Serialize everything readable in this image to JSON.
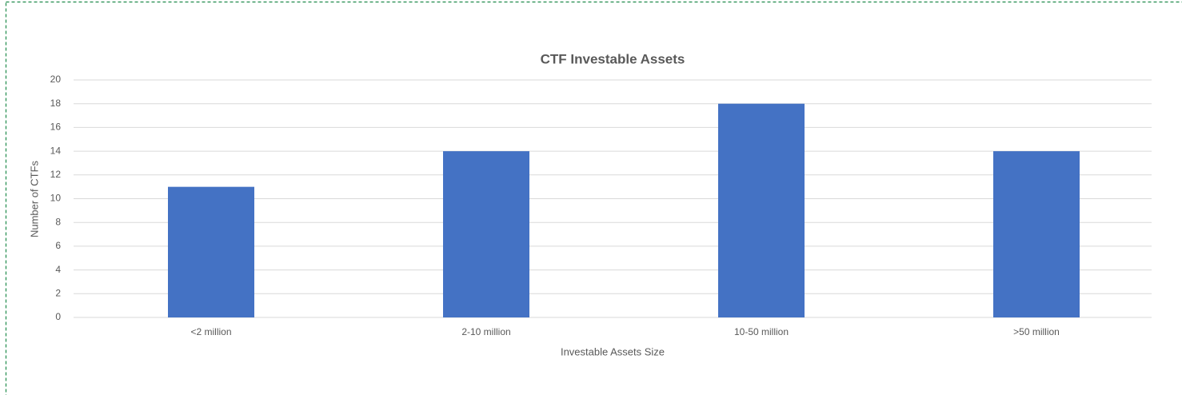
{
  "chart_data": {
    "type": "bar",
    "title": "CTF Investable Assets",
    "x_label": "Investable Assets Size",
    "y_label": "Number of CTFs",
    "categories": [
      "<2 million",
      "2-10 million",
      "10-50 million",
      ">50 million"
    ],
    "values": [
      11,
      14,
      18,
      14
    ],
    "color": "#4472c4",
    "ylim": [
      0,
      20
    ],
    "yticks": [
      0,
      2,
      4,
      6,
      8,
      10,
      12,
      14,
      16,
      18,
      20
    ],
    "grid": true
  }
}
